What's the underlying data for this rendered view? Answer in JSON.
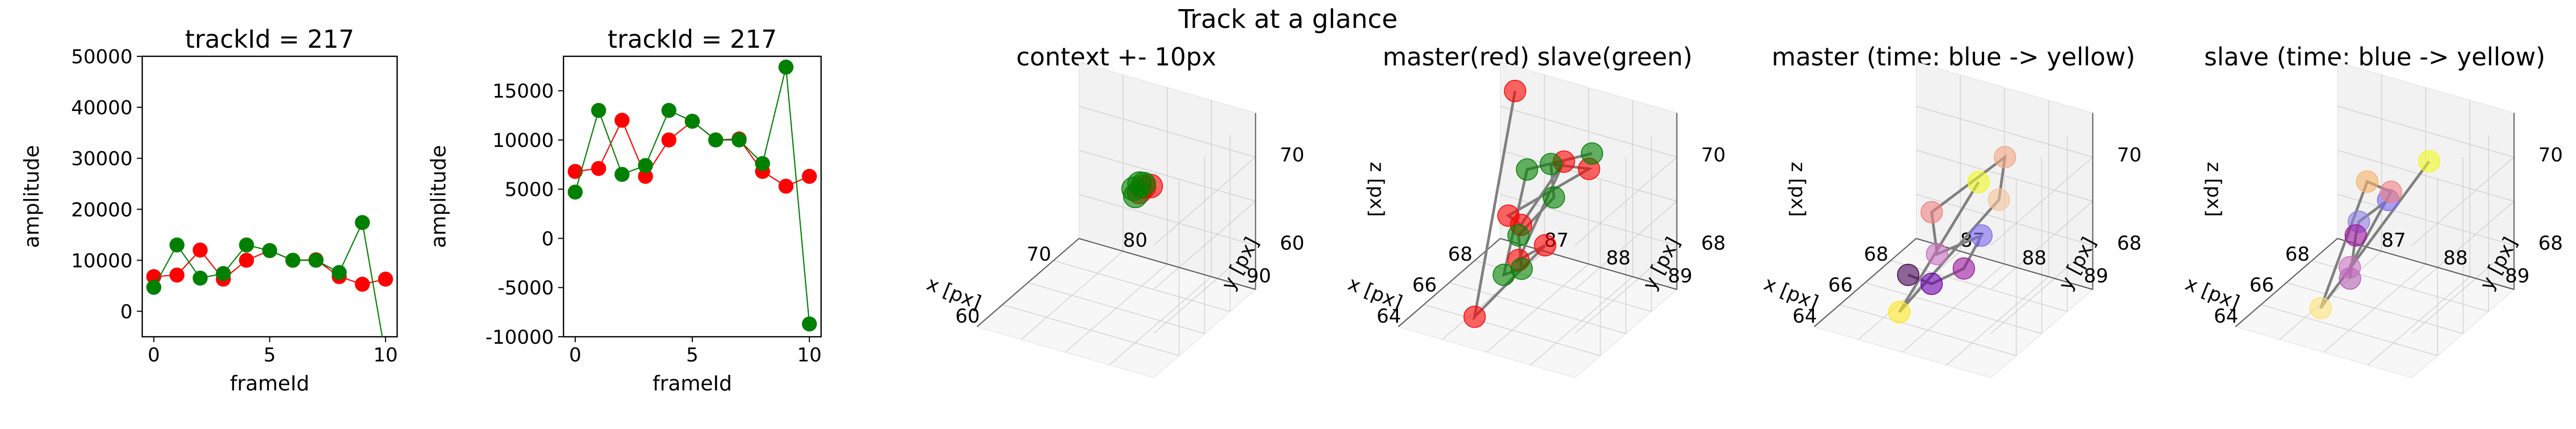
{
  "figure": {
    "title": "Track at a glance"
  },
  "colors": {
    "master": "#ff0000",
    "slave": "#008000",
    "trail": "#808080",
    "master_alpha": "#ff6b6b",
    "slave_alpha": "#4f9f4f"
  },
  "chart_data": [
    {
      "type": "line",
      "title": "trackId = 217",
      "xlabel": "frameId",
      "ylabel": "amplitude",
      "xlim": [
        -0.5,
        10.5
      ],
      "ylim": [
        -5000,
        50000
      ],
      "xticks": [
        0,
        5,
        10
      ],
      "yticks": [
        0,
        10000,
        20000,
        30000,
        40000,
        50000
      ],
      "x": [
        0,
        1,
        2,
        3,
        4,
        5,
        6,
        7,
        8,
        9,
        10
      ],
      "series": [
        {
          "name": "",
          "color": "#ff0000",
          "values": [
            6800,
            7100,
            12000,
            6300,
            10000,
            11900,
            10000,
            10100,
            6800,
            5300,
            6300
          ]
        },
        {
          "name": "",
          "color": "#008000",
          "values": [
            4700,
            13000,
            6500,
            7400,
            13000,
            11900,
            10000,
            10000,
            7600,
            17400,
            -8700
          ]
        }
      ]
    },
    {
      "type": "line",
      "title": "trackId = 217",
      "xlabel": "frameId",
      "ylabel": "amplitude",
      "xlim": [
        -0.5,
        10.5
      ],
      "ylim": [
        -10000,
        18500
      ],
      "xticks": [
        0,
        5,
        10
      ],
      "yticks": [
        -10000,
        -5000,
        0,
        5000,
        10000,
        15000
      ],
      "x": [
        0,
        1,
        2,
        3,
        4,
        5,
        6,
        7,
        8,
        9,
        10
      ],
      "series": [
        {
          "name": "",
          "color": "#ff0000",
          "values": [
            6800,
            7100,
            12000,
            6300,
            10000,
            11900,
            10000,
            10100,
            6800,
            5300,
            6300
          ]
        },
        {
          "name": "",
          "color": "#008000",
          "values": [
            4700,
            13000,
            6500,
            7400,
            13000,
            11900,
            10000,
            10000,
            7600,
            17400,
            -8700
          ]
        }
      ]
    },
    {
      "type": "scatter",
      "projection": "3d",
      "title": "context +- 10px",
      "xlabel": "x [px]",
      "ylabel": "y [px]",
      "zlabel": "z [px]",
      "xticks": [
        "60",
        "70"
      ],
      "yticks": [
        "80",
        "90"
      ],
      "zticks": [
        "60",
        "70"
      ],
      "xlim": [
        55,
        78
      ],
      "ylim": [
        76,
        98
      ],
      "zlim": [
        55,
        78
      ],
      "points": [
        {
          "x": 70.0,
          "y": 88.5,
          "z": 69.5,
          "color": "#ff0000"
        },
        {
          "x": 69.5,
          "y": 88.2,
          "z": 69.0,
          "color": "#ff0000"
        },
        {
          "x": 71.0,
          "y": 88.8,
          "z": 69.2,
          "color": "#ff0000"
        },
        {
          "x": 68.6,
          "y": 88.0,
          "z": 69.8,
          "color": "#008000"
        },
        {
          "x": 69.2,
          "y": 88.4,
          "z": 70.3,
          "color": "#008000"
        },
        {
          "x": 68.8,
          "y": 88.1,
          "z": 68.8,
          "color": "#008000"
        },
        {
          "x": 69.8,
          "y": 88.6,
          "z": 70.0,
          "color": "#008000"
        }
      ]
    },
    {
      "type": "scatter",
      "projection": "3d",
      "title": "master(red) slave(green)",
      "xlabel": "x [px]",
      "ylabel": "y [px]",
      "zlabel": "z [px]",
      "xticks": [
        "64",
        "66",
        "68"
      ],
      "yticks": [
        "87",
        "88",
        "89"
      ],
      "zticks": [
        "68",
        "70"
      ],
      "xlim": [
        63,
        70
      ],
      "ylim": [
        86.5,
        89.5
      ],
      "zlim": [
        66.5,
        71
      ],
      "points": [
        {
          "x": 69.0,
          "y": 87.0,
          "z": 70.8,
          "color": "#ff0000"
        },
        {
          "x": 64.2,
          "y": 87.5,
          "z": 66.8,
          "color": "#ff0000"
        },
        {
          "x": 65.0,
          "y": 88.5,
          "z": 68.8,
          "color": "#ff0000"
        },
        {
          "x": 66.0,
          "y": 87.8,
          "z": 67.8,
          "color": "#ff0000"
        },
        {
          "x": 67.5,
          "y": 88.2,
          "z": 70.0,
          "color": "#ff0000"
        },
        {
          "x": 68.6,
          "y": 87.2,
          "z": 67.6,
          "color": "#ff0000"
        },
        {
          "x": 64.5,
          "y": 88.0,
          "z": 69.5,
          "color": "#ff0000"
        },
        {
          "x": 66.8,
          "y": 88.8,
          "z": 70.3,
          "color": "#ff0000"
        },
        {
          "x": 66.2,
          "y": 88.3,
          "z": 70.4,
          "color": "#008000"
        },
        {
          "x": 65.2,
          "y": 88.6,
          "z": 70.0,
          "color": "#008000"
        },
        {
          "x": 65.6,
          "y": 87.9,
          "z": 68.6,
          "color": "#008000"
        },
        {
          "x": 64.6,
          "y": 88.2,
          "z": 68.2,
          "color": "#008000"
        },
        {
          "x": 65.8,
          "y": 87.6,
          "z": 67.4,
          "color": "#008000"
        },
        {
          "x": 67.8,
          "y": 87.5,
          "z": 69.4,
          "color": "#008000"
        },
        {
          "x": 66.6,
          "y": 88.9,
          "z": 70.8,
          "color": "#008000"
        }
      ]
    },
    {
      "type": "scatter",
      "projection": "3d",
      "title": "master (time: blue -> yellow)",
      "xlabel": "x [px]",
      "ylabel": "y [px]",
      "zlabel": "z [px]",
      "xticks": [
        "64",
        "66",
        "68"
      ],
      "yticks": [
        "87",
        "88",
        "89"
      ],
      "zticks": [
        "68",
        "70"
      ],
      "xlim": [
        63,
        70
      ],
      "ylim": [
        86.5,
        89.5
      ],
      "zlim": [
        66.5,
        71
      ],
      "points": [
        {
          "x": 64.2,
          "y": 87.8,
          "z": 68.0,
          "color": "#440154"
        },
        {
          "x": 65.0,
          "y": 88.0,
          "z": 67.6,
          "color": "#6a00a8"
        },
        {
          "x": 66.0,
          "y": 88.3,
          "z": 67.8,
          "color": "#9c179e"
        },
        {
          "x": 66.4,
          "y": 88.5,
          "z": 68.6,
          "color": "#7b68ee"
        },
        {
          "x": 67.8,
          "y": 87.4,
          "z": 67.2,
          "color": "#c76fbf"
        },
        {
          "x": 64.6,
          "y": 88.1,
          "z": 69.6,
          "color": "#f08080"
        },
        {
          "x": 66.8,
          "y": 88.8,
          "z": 70.6,
          "color": "#f4a582"
        },
        {
          "x": 67.2,
          "y": 88.6,
          "z": 69.3,
          "color": "#f7c39a"
        },
        {
          "x": 64.4,
          "y": 87.6,
          "z": 66.9,
          "color": "#fde725"
        },
        {
          "x": 65.8,
          "y": 88.6,
          "z": 70.2,
          "color": "#f0f921"
        }
      ]
    },
    {
      "type": "scatter",
      "projection": "3d",
      "title": "slave (time: blue -> yellow)",
      "xlabel": "x [px]",
      "ylabel": "y [px]",
      "zlabel": "z [px]",
      "xticks": [
        "64",
        "66",
        "68"
      ],
      "yticks": [
        "87",
        "88",
        "89"
      ],
      "zticks": [
        "68",
        "70"
      ],
      "xlim": [
        63,
        70
      ],
      "ylim": [
        86.5,
        89.5
      ],
      "zlim": [
        66.5,
        71
      ],
      "points": [
        {
          "x": 65.0,
          "y": 88.6,
          "z": 70.0,
          "color": "#7b68ee"
        },
        {
          "x": 64.6,
          "y": 88.2,
          "z": 69.4,
          "color": "#8c7ee0"
        },
        {
          "x": 65.6,
          "y": 87.9,
          "z": 68.6,
          "color": "#9c179e"
        },
        {
          "x": 64.8,
          "y": 88.0,
          "z": 67.8,
          "color": "#b05fb0"
        },
        {
          "x": 66.4,
          "y": 87.6,
          "z": 67.4,
          "color": "#c76fbf"
        },
        {
          "x": 66.0,
          "y": 88.4,
          "z": 69.8,
          "color": "#f08080"
        },
        {
          "x": 67.6,
          "y": 87.6,
          "z": 69.2,
          "color": "#f7b267"
        },
        {
          "x": 64.4,
          "y": 87.6,
          "z": 67.0,
          "color": "#fde27a"
        },
        {
          "x": 66.6,
          "y": 88.9,
          "z": 70.6,
          "color": "#f0f921"
        }
      ]
    }
  ]
}
